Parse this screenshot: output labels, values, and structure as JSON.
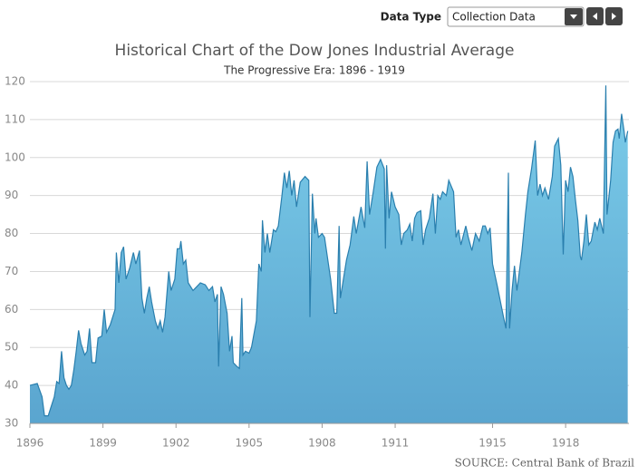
{
  "controls": {
    "label": "Data Type",
    "selected": "Collection Data"
  },
  "chart_data": {
    "type": "area",
    "title": "Historical Chart of the Dow Jones Industrial Average",
    "subtitle": "The Progressive Era: 1896 - 1919",
    "source": "SOURCE: Central Bank of Brazil",
    "color": "#6cbde3",
    "line_color": "#2a7fae",
    "grid": true,
    "xlim": [
      1896,
      1920.6
    ],
    "xticks": [
      1896,
      1899,
      1902,
      1905,
      1908,
      1911,
      1915,
      1918
    ],
    "ylim": [
      30,
      120
    ],
    "yticks": [
      30,
      40,
      50,
      60,
      70,
      80,
      90,
      100,
      110,
      120
    ],
    "x": [
      1896.0,
      1896.3,
      1896.5,
      1896.6,
      1896.75,
      1897.0,
      1897.1,
      1897.2,
      1897.3,
      1897.4,
      1897.5,
      1897.6,
      1897.7,
      1897.8,
      1897.9,
      1898.0,
      1898.1,
      1898.25,
      1898.35,
      1898.45,
      1898.55,
      1898.7,
      1898.8,
      1898.95,
      1899.05,
      1899.15,
      1899.3,
      1899.5,
      1899.55,
      1899.65,
      1899.75,
      1899.85,
      1899.95,
      1900.1,
      1900.25,
      1900.35,
      1900.5,
      1900.6,
      1900.7,
      1900.8,
      1900.9,
      1901.0,
      1901.15,
      1901.25,
      1901.35,
      1901.45,
      1901.55,
      1901.7,
      1901.8,
      1901.95,
      1902.05,
      1902.15,
      1902.2,
      1902.3,
      1902.4,
      1902.5,
      1902.7,
      1902.85,
      1903.0,
      1903.2,
      1903.35,
      1903.5,
      1903.6,
      1903.7,
      1903.75,
      1903.85,
      1903.95,
      1904.1,
      1904.2,
      1904.3,
      1904.35,
      1904.5,
      1904.6,
      1904.7,
      1904.75,
      1904.85,
      1905.0,
      1905.1,
      1905.3,
      1905.4,
      1905.5,
      1905.55,
      1905.65,
      1905.75,
      1905.85,
      1906.0,
      1906.1,
      1906.2,
      1906.35,
      1906.45,
      1906.55,
      1906.65,
      1906.75,
      1906.85,
      1906.95,
      1907.1,
      1907.3,
      1907.45,
      1907.5,
      1907.6,
      1907.7,
      1907.75,
      1907.85,
      1908.0,
      1908.1,
      1908.35,
      1908.5,
      1908.6,
      1908.7,
      1908.75,
      1909.0,
      1909.15,
      1909.3,
      1909.4,
      1909.6,
      1909.75,
      1909.85,
      1909.95,
      1910.1,
      1910.25,
      1910.4,
      1910.55,
      1910.6,
      1910.65,
      1910.75,
      1910.85,
      1911.0,
      1911.15,
      1911.25,
      1911.35,
      1911.5,
      1911.6,
      1911.7,
      1911.8,
      1911.9,
      1912.05,
      1912.15,
      1912.25,
      1912.4,
      1912.55,
      1912.65,
      1912.75,
      1912.85,
      1912.95,
      1913.1,
      1913.2,
      1913.4,
      1913.5,
      1913.6,
      1913.7,
      1913.8,
      1913.9,
      1914.0,
      1914.15,
      1914.3,
      1914.45,
      1914.6,
      1914.7,
      1914.8,
      1914.9,
      1915.0,
      1915.2,
      1915.45,
      1915.55,
      1915.65,
      1915.7,
      1915.8,
      1915.9,
      1916.0,
      1916.2,
      1916.35,
      1916.45,
      1916.6,
      1916.75,
      1916.85,
      1916.95,
      1917.05,
      1917.15,
      1917.3,
      1917.45,
      1917.55,
      1917.7,
      1917.8,
      1917.9,
      1918.0,
      1918.1,
      1918.2,
      1918.3,
      1918.4,
      1918.5,
      1918.6,
      1918.65,
      1918.75,
      1918.85,
      1918.95,
      1919.05,
      1919.2,
      1919.3,
      1919.4,
      1919.55,
      1919.65,
      1919.7,
      1919.85,
      1919.95,
      1920.05,
      1920.15,
      1920.2,
      1920.3,
      1920.4,
      1920.45,
      1920.55
    ],
    "values": [
      40,
      40.5,
      37,
      32,
      32,
      37,
      41,
      40.5,
      49,
      42,
      40,
      39,
      40,
      44,
      49,
      54.5,
      51,
      48,
      49,
      55,
      46,
      46,
      52.5,
      53,
      60,
      54,
      56,
      60,
      75,
      67,
      75,
      76.5,
      68,
      71,
      75,
      72,
      75.5,
      63,
      59,
      63,
      66,
      62,
      57,
      55,
      57,
      54,
      58,
      70,
      65,
      68,
      76,
      76,
      78,
      72,
      73,
      67,
      65,
      66,
      67,
      66.5,
      65,
      66,
      62,
      64,
      45,
      66,
      64,
      59,
      49,
      53,
      46,
      45,
      44.5,
      63,
      48,
      49,
      48.5,
      50,
      57,
      72,
      70,
      83.5,
      75,
      80,
      75,
      81,
      80.5,
      82,
      90,
      96,
      92,
      96.5,
      90,
      94,
      87,
      93.5,
      95,
      94,
      58,
      90.5,
      80,
      84,
      79,
      80,
      79,
      68,
      59,
      59,
      82,
      63,
      73,
      77,
      84.5,
      80,
      87,
      81.5,
      99,
      85,
      91,
      97.5,
      99.5,
      97,
      76,
      98,
      84,
      91,
      87,
      85,
      77,
      80,
      81,
      82.5,
      78,
      84,
      85.5,
      86,
      77,
      81,
      84,
      90.5,
      80,
      90,
      89,
      91,
      90,
      94,
      91,
      79,
      81,
      77,
      79.5,
      82,
      79,
      75.5,
      80,
      78,
      82,
      82,
      80,
      81.5,
      72,
      66,
      58,
      55,
      96,
      55,
      65,
      71.5,
      65,
      75,
      85,
      91,
      97,
      104.5,
      90,
      93,
      90,
      92,
      89,
      95,
      103,
      105,
      98,
      74.5,
      94,
      91,
      97.5,
      95,
      89,
      83.5,
      74,
      73,
      78,
      85,
      77,
      78,
      83,
      81,
      84,
      80,
      119,
      85,
      94,
      104,
      107,
      107.5,
      105,
      111.5,
      107,
      104,
      107
    ]
  }
}
